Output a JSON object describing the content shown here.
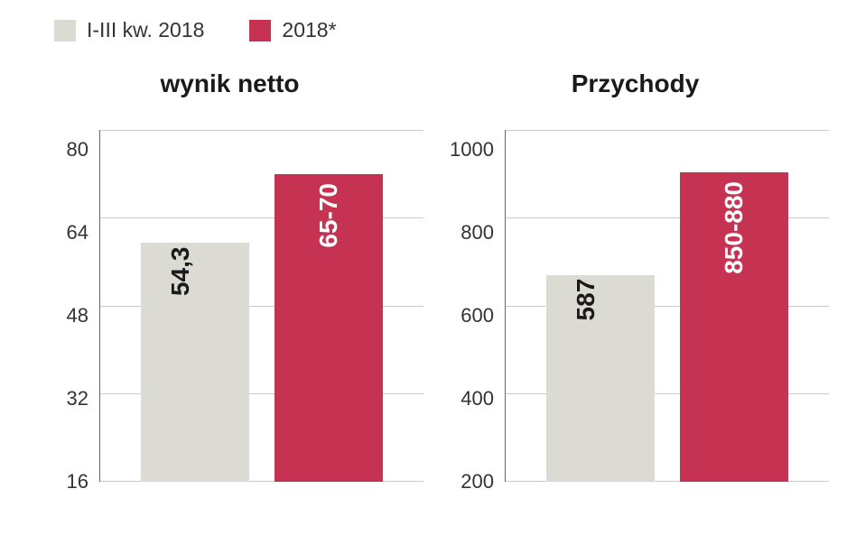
{
  "legend": {
    "items": [
      {
        "label": "I-III kw. 2018",
        "color": "#dcdbd3"
      },
      {
        "label": "2018*",
        "color": "#c53252"
      }
    ]
  },
  "colors": {
    "series1": "#dcdbd3",
    "series2": "#c53252",
    "gridline": "#cccccc",
    "axis": "#666666",
    "text": "#333333",
    "bar_label_dark": "#1a1a1a",
    "bar_label_light": "#ffffff",
    "background": "#ffffff"
  },
  "typography": {
    "title_fontsize": 28,
    "legend_fontsize": 23,
    "tick_fontsize": 22,
    "bar_label_fontsize": 28,
    "font_weight_title": 700,
    "font_weight_bar_label": 800
  },
  "charts": [
    {
      "title": "wynik netto",
      "type": "bar",
      "ylim": [
        0,
        80
      ],
      "ytick_step": 16,
      "yticks": [
        "80",
        "64",
        "48",
        "32",
        "16"
      ],
      "bars": [
        {
          "value": 54.3,
          "label": "54,3",
          "color": "#dcdbd3",
          "label_position": "above",
          "label_color": "#1a1a1a"
        },
        {
          "value": 70,
          "label": "65-70",
          "color": "#c53252",
          "label_position": "inside",
          "label_color": "#ffffff"
        }
      ]
    },
    {
      "title": "Przychody",
      "type": "bar",
      "ylim": [
        0,
        1000
      ],
      "ytick_step": 200,
      "yticks": [
        "1000",
        "800",
        "600",
        "400",
        "200"
      ],
      "bars": [
        {
          "value": 587,
          "label": "587",
          "color": "#dcdbd3",
          "label_position": "above",
          "label_color": "#1a1a1a"
        },
        {
          "value": 880,
          "label": "850-880",
          "color": "#c53252",
          "label_position": "inside",
          "label_color": "#ffffff"
        }
      ]
    }
  ]
}
